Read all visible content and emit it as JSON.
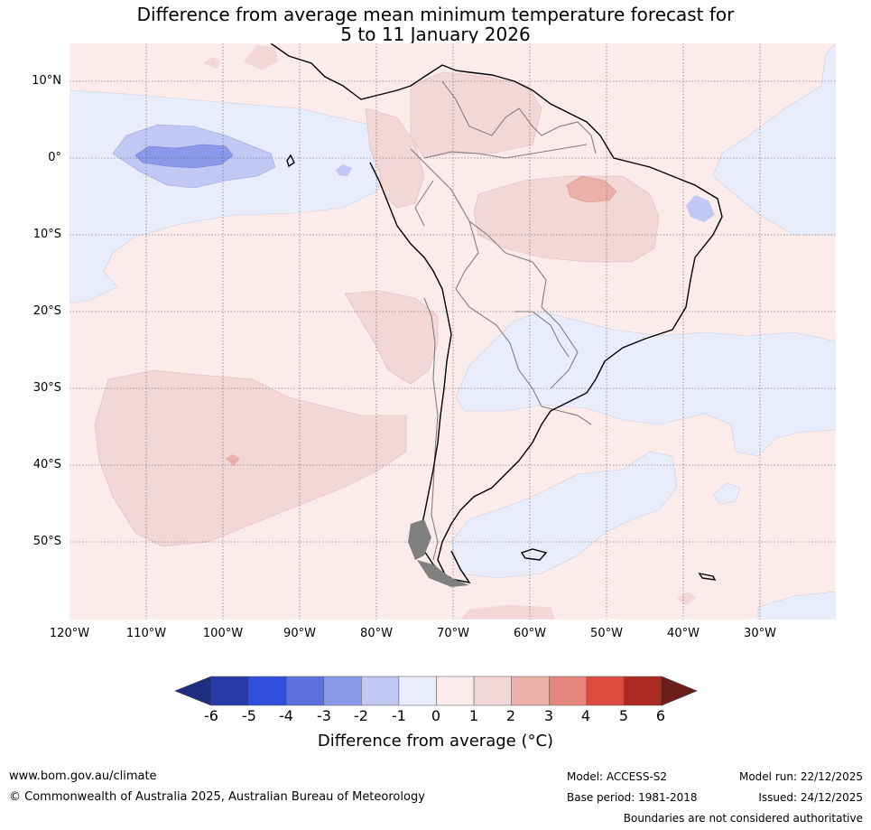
{
  "title": {
    "line1": "Difference from average mean minimum temperature forecast for",
    "line2": "5 to 11 January 2026"
  },
  "map": {
    "region": "South America and adjacent oceans",
    "lat_labels": [
      "10°N",
      "0°",
      "10°S",
      "20°S",
      "30°S",
      "40°S",
      "50°S"
    ],
    "lon_labels": [
      "120°W",
      "110°W",
      "100°W",
      "90°W",
      "80°W",
      "70°W",
      "60°W",
      "50°W",
      "40°W",
      "30°W"
    ],
    "lon_range": [
      -120,
      -20
    ],
    "lat_range": [
      -60,
      15
    ]
  },
  "colorbar": {
    "ticks": [
      "-6",
      "-5",
      "-4",
      "-3",
      "-2",
      "-1",
      "0",
      "1",
      "2",
      "3",
      "4",
      "5",
      "6"
    ],
    "colors": [
      "#1e2d7f",
      "#283ba8",
      "#2f4fdc",
      "#5c70e0",
      "#8a99ea",
      "#c1c8f3",
      "#e8ecfb",
      "#fbebea",
      "#f3d6d6",
      "#ebb0aa",
      "#e5867e",
      "#db4b3e",
      "#ab2a21",
      "#6b1d1a"
    ],
    "label": "Difference from average (°C)"
  },
  "colors": {
    "land_coast": "#000000",
    "borders": "#808080",
    "grid": "#555555"
  },
  "footer": {
    "website": "www.bom.gov.au/climate",
    "copyright": "© Commonwealth of Australia 2025, Australian Bureau of Meteorology",
    "model": "Model: ACCESS-S2",
    "base_period": "Base period: 1981-2018",
    "model_run": "Model run: 22/12/2025",
    "issued": "Issued: 24/12/2025",
    "disclaimer": "Boundaries are not considered authoritative"
  }
}
